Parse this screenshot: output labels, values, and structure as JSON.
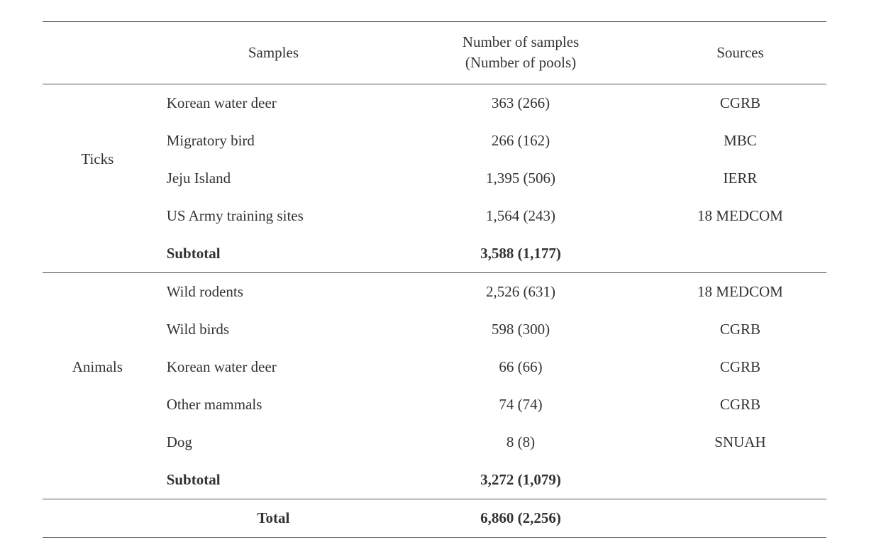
{
  "header": {
    "category_blank": "",
    "samples": "Samples",
    "num": "Number of samples\n(Number of pools)",
    "sources": "Sources"
  },
  "ticks": {
    "category": "Ticks",
    "rows": [
      {
        "sample": "Korean water deer",
        "num": "363 (266)",
        "src": "CGRB"
      },
      {
        "sample": "Migratory bird",
        "num": "266 (162)",
        "src": "MBC"
      },
      {
        "sample": "Jeju Island",
        "num": "1,395 (506)",
        "src": "IERR"
      },
      {
        "sample": "US Army training sites",
        "num": "1,564 (243)",
        "src": "18 MEDCOM"
      }
    ],
    "subtotal": {
      "label": "Subtotal",
      "num": "3,588 (1,177)"
    }
  },
  "animals": {
    "category": "Animals",
    "rows": [
      {
        "sample": "Wild rodents",
        "num": "2,526 (631)",
        "src": "18 MEDCOM"
      },
      {
        "sample": "Wild birds",
        "num": "598 (300)",
        "src": "CGRB"
      },
      {
        "sample": "Korean water deer",
        "num": "66 (66)",
        "src": "CGRB"
      },
      {
        "sample": "Other mammals",
        "num": "74 (74)",
        "src": "CGRB"
      },
      {
        "sample": "Dog",
        "num": "8 (8)",
        "src": "SNUAH"
      }
    ],
    "subtotal": {
      "label": "Subtotal",
      "num": "3,272 (1,079)"
    }
  },
  "total": {
    "label": "Total",
    "num": "6,860 (2,256)"
  },
  "colors": {
    "border": "#555555",
    "text": "#333333",
    "bg": "#ffffff"
  }
}
